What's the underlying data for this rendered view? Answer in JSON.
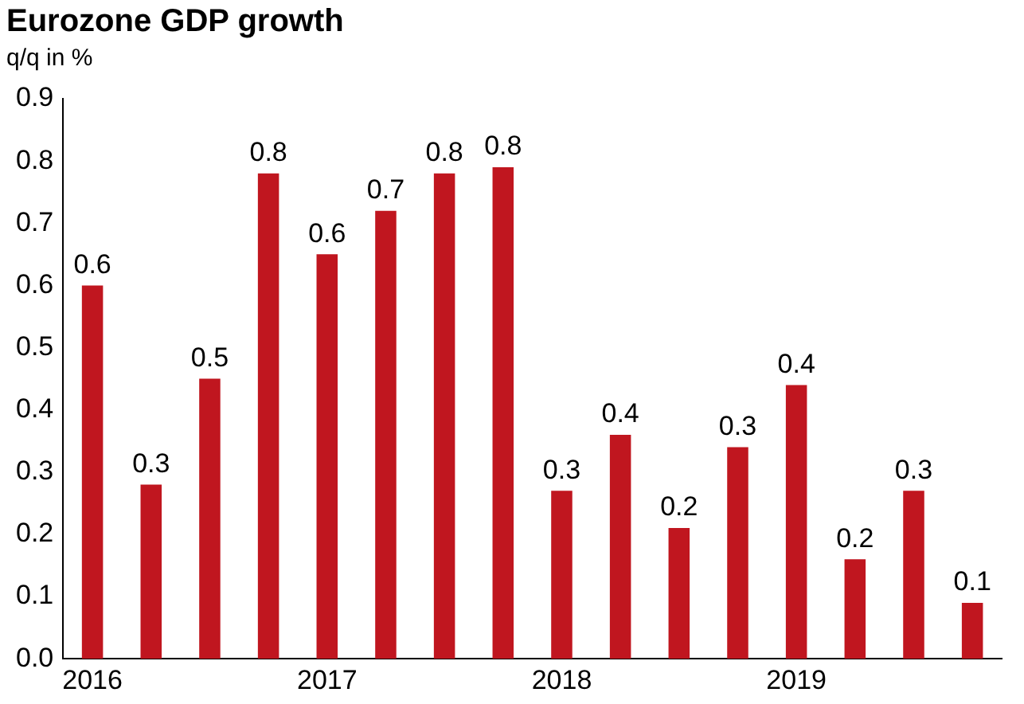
{
  "chart_data": {
    "type": "bar",
    "title": "Eurozone GDP growth",
    "subtitle": "q/q in %",
    "categories": [
      "2016",
      null,
      null,
      null,
      "2017",
      null,
      null,
      null,
      "2018",
      null,
      null,
      null,
      "2019",
      null,
      null,
      null
    ],
    "values": [
      0.6,
      0.28,
      0.45,
      0.78,
      0.65,
      0.72,
      0.78,
      0.79,
      0.27,
      0.36,
      0.21,
      0.34,
      0.44,
      0.16,
      0.27,
      0.09
    ],
    "value_labels": [
      "0.6",
      "0.3",
      "0.5",
      "0.8",
      "0.6",
      "0.7",
      "0.8",
      "0.8",
      "0.3",
      "0.4",
      "0.2",
      "0.3",
      "0.4",
      "0.2",
      "0.3",
      "0.1"
    ],
    "color": "#c0161f",
    "ylim": [
      0,
      0.9
    ],
    "yticks": [
      {
        "value": 0,
        "label": "0.0"
      },
      0.1,
      0.2,
      0.3,
      0.4,
      0.5,
      0.6,
      0.7,
      0.8,
      0.9
    ],
    "grid": false,
    "legend": false
  }
}
